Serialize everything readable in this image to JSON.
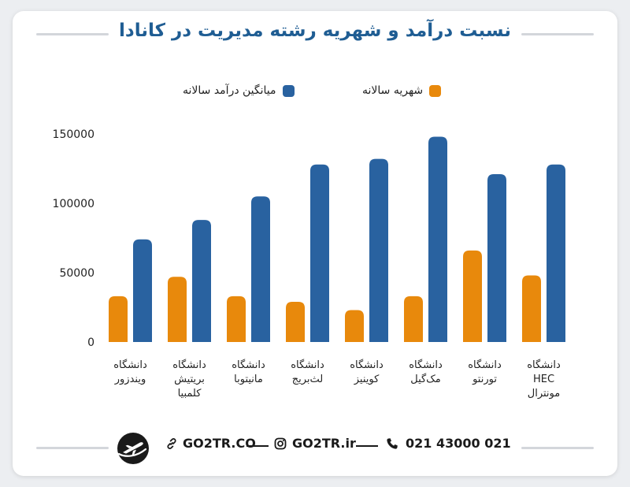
{
  "chart_data": {
    "type": "bar",
    "title": "نسبت درآمد و شهریه رشته مدیریت در کانادا",
    "categories": [
      "دانشگاه ویندزور",
      "دانشگاه بریتیش کلمبیا",
      "دانشگاه مانیتوبا",
      "دانشگاه لث‌بریج",
      "دانشگاه کوینیز",
      "دانشگاه مک‌گیل",
      "دانشگاه تورنتو",
      "دانشگاه HEC مونترال"
    ],
    "category_lines": [
      [
        "دانشگاه",
        "ویندزور"
      ],
      [
        "دانشگاه",
        "بریتیش",
        "کلمبیا"
      ],
      [
        "دانشگاه",
        "مانیتوبا"
      ],
      [
        "دانشگاه",
        "لث‌بریج"
      ],
      [
        "دانشگاه",
        "کوینیز"
      ],
      [
        "دانشگاه",
        "مک‌گیل"
      ],
      [
        "دانشگاه",
        "تورنتو"
      ],
      [
        "دانشگاه",
        "HEC",
        "مونترال"
      ]
    ],
    "series": [
      {
        "name": "شهریه سالانه",
        "color": "#e8890c",
        "values": [
          33000,
          47000,
          33000,
          29000,
          23000,
          33000,
          66000,
          48000
        ]
      },
      {
        "name": "میانگین درآمد سالانه",
        "color": "#2962a0",
        "values": [
          74000,
          88000,
          105000,
          128000,
          132000,
          148000,
          121000,
          128000
        ]
      }
    ],
    "ylim": [
      0,
      150000
    ],
    "yticks": [
      0,
      50000,
      100000,
      150000
    ],
    "ytick_labels": [
      "0",
      "50000",
      "100000",
      "150000"
    ],
    "legend_position": "top",
    "grid": false
  },
  "footer": {
    "phone": "021 43000 021",
    "instagram": "GO2TR.ir",
    "website": "GO2TR.CO"
  },
  "icons": {
    "phone": "phone-icon",
    "instagram": "instagram-icon",
    "link": "link-icon",
    "logo": "airplane-logo-icon"
  }
}
